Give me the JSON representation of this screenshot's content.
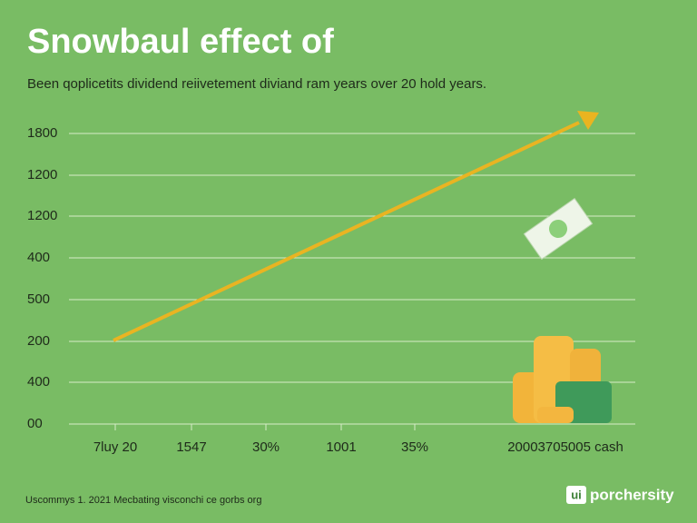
{
  "header": {
    "title": "Snowbaul effect of",
    "subtitle": "Been qoplicetits dividend reiivetement diviand ram years over 20 hold years."
  },
  "y_axis_labels": [
    "1800",
    "1200",
    "1200",
    "400",
    "500",
    "200",
    "400",
    "00"
  ],
  "x_axis_labels": [
    "7luy 20",
    "1547",
    "30%",
    "1001",
    "35%",
    "20003705005 cash"
  ],
  "footer": {
    "note": "Uscommys 1. 2021 Mecbating visconchi ce gorbs org",
    "brand_badge": "ui",
    "brand_name": "porchersity"
  }
}
